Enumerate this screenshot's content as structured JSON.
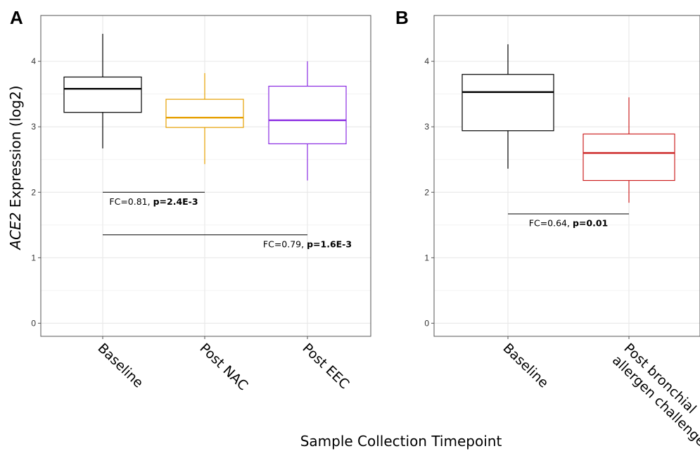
{
  "axis_title_x": "Sample Collection Timepoint",
  "chart_data": [
    {
      "panel": "A",
      "type": "boxplot",
      "ylabel_italic": "ACE2",
      "ylabel_rest": " Expression (log2)",
      "ylim": [
        -0.2,
        4.7
      ],
      "yticks": [
        0,
        1,
        2,
        3,
        4
      ],
      "grid": true,
      "categories": [
        "Baseline",
        "Post NAC",
        "Post EEC"
      ],
      "colors": [
        "#000000",
        "#e69f00",
        "#8a2be2"
      ],
      "boxes": [
        {
          "whisker_low": 2.67,
          "q1": 3.22,
          "median": 3.58,
          "q3": 3.76,
          "whisker_high": 4.42
        },
        {
          "whisker_low": 2.43,
          "q1": 2.99,
          "median": 3.14,
          "q3": 3.42,
          "whisker_high": 3.82
        },
        {
          "whisker_low": 2.18,
          "q1": 2.74,
          "median": 3.1,
          "q3": 3.62,
          "whisker_high": 4.0
        }
      ],
      "comparisons": [
        {
          "from": 0,
          "to": 1,
          "y": 2.0,
          "label_plain": "FC=0.81, ",
          "label_bold": "p=2.4E-3",
          "label_x": 0.5,
          "label_y": 1.81
        },
        {
          "from": 0,
          "to": 2,
          "y": 1.35,
          "label_plain": "FC=0.79, ",
          "label_bold": "p=1.6E-3",
          "label_x": 1.0,
          "label_y": 1.16
        }
      ]
    },
    {
      "panel": "B",
      "type": "boxplot",
      "ylim": [
        -0.2,
        4.7
      ],
      "yticks": [
        0,
        1,
        2,
        3,
        4
      ],
      "grid": true,
      "categories": [
        "Baseline",
        "Post bronchial allergen challenge"
      ],
      "category_lines": [
        [
          "Baseline"
        ],
        [
          "Post bronchial",
          "allergen challenge"
        ]
      ],
      "colors": [
        "#000000",
        "#cc2222"
      ],
      "boxes": [
        {
          "whisker_low": 2.36,
          "q1": 2.94,
          "median": 3.53,
          "q3": 3.8,
          "whisker_high": 4.26
        },
        {
          "whisker_low": 1.84,
          "q1": 2.18,
          "median": 2.6,
          "q3": 2.89,
          "whisker_high": 3.45
        }
      ],
      "comparisons": [
        {
          "from": 0,
          "to": 1,
          "y": 1.67,
          "label_plain": "FC=0.64, ",
          "label_bold": "p=0.01",
          "label_x": 0.5,
          "label_y": 1.48
        }
      ]
    }
  ]
}
